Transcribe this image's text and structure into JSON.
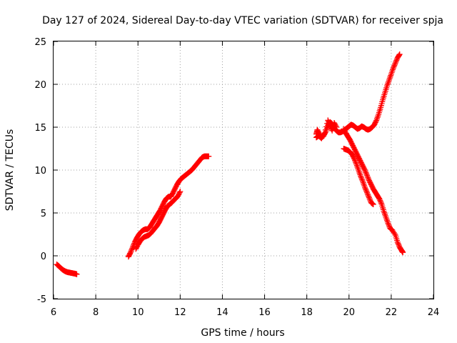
{
  "chart_data": {
    "type": "scatter",
    "title": "Day 127 of 2024, Sidereal Day-to-day VTEC variation (SDTVAR) for receiver spja",
    "xlabel": "GPS time / hours",
    "ylabel": "SDTVAR / TECUs",
    "xlim": [
      6,
      24
    ],
    "ylim": [
      -5,
      25
    ],
    "xticks": [
      6,
      8,
      10,
      12,
      14,
      16,
      18,
      20,
      22,
      24
    ],
    "yticks": [
      -5,
      0,
      5,
      10,
      15,
      20,
      25
    ],
    "grid": true,
    "marker": "plus",
    "color": "#ff0000",
    "series": [
      {
        "name": "segment-1",
        "x": [
          6.15,
          6.25,
          6.35,
          6.45,
          6.55,
          6.65,
          6.75,
          6.85,
          6.95,
          7.05,
          7.1
        ],
        "y": [
          -1.0,
          -1.2,
          -1.45,
          -1.65,
          -1.8,
          -1.9,
          -1.95,
          -2.0,
          -2.05,
          -2.1,
          -2.15
        ]
      },
      {
        "name": "segment-2",
        "x": [
          9.55,
          9.65,
          9.75,
          9.85,
          9.95,
          10.05,
          10.15,
          10.25,
          10.35,
          10.45,
          10.55,
          10.65,
          10.75,
          10.85,
          10.95,
          11.05,
          11.15,
          11.25,
          11.35,
          11.45,
          11.55,
          11.65,
          11.75,
          11.85,
          11.95,
          12.05,
          12.15,
          12.25,
          12.35,
          12.45,
          12.55,
          12.65,
          12.75,
          12.85,
          12.95,
          13.05,
          13.15,
          13.25,
          13.35
        ],
        "y": [
          -0.1,
          0.4,
          1.0,
          1.6,
          2.1,
          2.5,
          2.8,
          3.0,
          3.1,
          3.1,
          3.3,
          3.7,
          4.1,
          4.5,
          4.9,
          5.3,
          5.8,
          6.3,
          6.7,
          6.9,
          6.9,
          7.3,
          7.8,
          8.3,
          8.7,
          9.0,
          9.2,
          9.4,
          9.6,
          9.8,
          10.0,
          10.3,
          10.6,
          10.9,
          11.2,
          11.5,
          11.6,
          11.6,
          11.6
        ]
      },
      {
        "name": "segment-3",
        "x": [
          9.9,
          10.0,
          10.1,
          10.2,
          10.3,
          10.4,
          10.5,
          10.6,
          10.7,
          10.8,
          10.9,
          11.0,
          11.1,
          11.2,
          11.3,
          11.4,
          11.5,
          11.6,
          11.7,
          11.8,
          11.9,
          12.0
        ],
        "y": [
          0.8,
          1.3,
          1.7,
          2.0,
          2.2,
          2.3,
          2.4,
          2.6,
          2.9,
          3.2,
          3.5,
          3.9,
          4.4,
          4.9,
          5.4,
          5.8,
          6.0,
          6.2,
          6.5,
          6.7,
          7.0,
          7.5
        ]
      },
      {
        "name": "segment-4",
        "x": [
          18.45,
          18.5,
          18.6,
          18.7,
          18.8,
          18.9,
          19.0,
          19.1,
          19.2,
          19.3,
          19.4,
          19.5,
          19.6,
          19.7,
          19.8,
          19.9,
          20.0,
          20.1,
          20.2,
          20.3,
          20.4,
          20.5,
          20.6,
          20.7,
          20.8,
          20.9,
          21.0,
          21.1,
          21.2,
          21.3,
          21.4,
          21.5,
          21.6,
          21.7,
          21.8,
          21.9,
          22.0,
          22.1,
          22.2,
          22.3,
          22.4
        ],
        "y": [
          14.2,
          14.7,
          14.2,
          13.8,
          14.0,
          14.5,
          15.2,
          15.6,
          15.4,
          14.9,
          14.6,
          14.4,
          14.4,
          14.5,
          14.7,
          14.9,
          15.1,
          15.3,
          15.2,
          15.0,
          14.8,
          14.9,
          15.1,
          15.0,
          14.8,
          14.7,
          14.8,
          15.0,
          15.3,
          15.8,
          16.5,
          17.3,
          18.2,
          19.0,
          19.8,
          20.5,
          21.2,
          21.9,
          22.5,
          23.1,
          23.5
        ]
      },
      {
        "name": "segment-5",
        "x": [
          18.45,
          18.55,
          18.7,
          18.85,
          19.0,
          19.1,
          19.2,
          19.3,
          19.4
        ],
        "y": [
          13.8,
          14.0,
          13.7,
          14.3,
          15.8,
          15.2,
          14.6,
          15.5,
          15.0
        ]
      },
      {
        "name": "segment-6",
        "x": [
          19.75,
          19.85,
          19.95,
          20.05,
          20.15,
          20.25,
          20.35,
          20.45,
          20.55,
          20.65,
          20.75,
          20.85,
          20.95,
          21.05,
          21.15
        ],
        "y": [
          12.5,
          12.4,
          12.3,
          12.1,
          11.8,
          11.3,
          10.7,
          10.0,
          9.3,
          8.7,
          8.0,
          7.4,
          6.8,
          6.2,
          6.0
        ]
      },
      {
        "name": "segment-7",
        "x": [
          19.75,
          19.85,
          19.95,
          20.05,
          20.15,
          20.25,
          20.35,
          20.45,
          20.55,
          20.65,
          20.75,
          20.85,
          20.95,
          21.05,
          21.15,
          21.25,
          21.35,
          21.45,
          21.55,
          21.65,
          21.75,
          21.85,
          21.95,
          22.05,
          22.2,
          22.3,
          22.4,
          22.5,
          22.55
        ],
        "y": [
          14.8,
          14.3,
          13.9,
          13.5,
          13.0,
          12.5,
          12.0,
          11.5,
          11.0,
          10.5,
          10.0,
          9.4,
          8.8,
          8.3,
          7.8,
          7.4,
          7.0,
          6.6,
          6.0,
          5.2,
          4.5,
          3.8,
          3.2,
          3.0,
          2.4,
          1.6,
          1.0,
          0.6,
          0.4
        ]
      }
    ]
  }
}
